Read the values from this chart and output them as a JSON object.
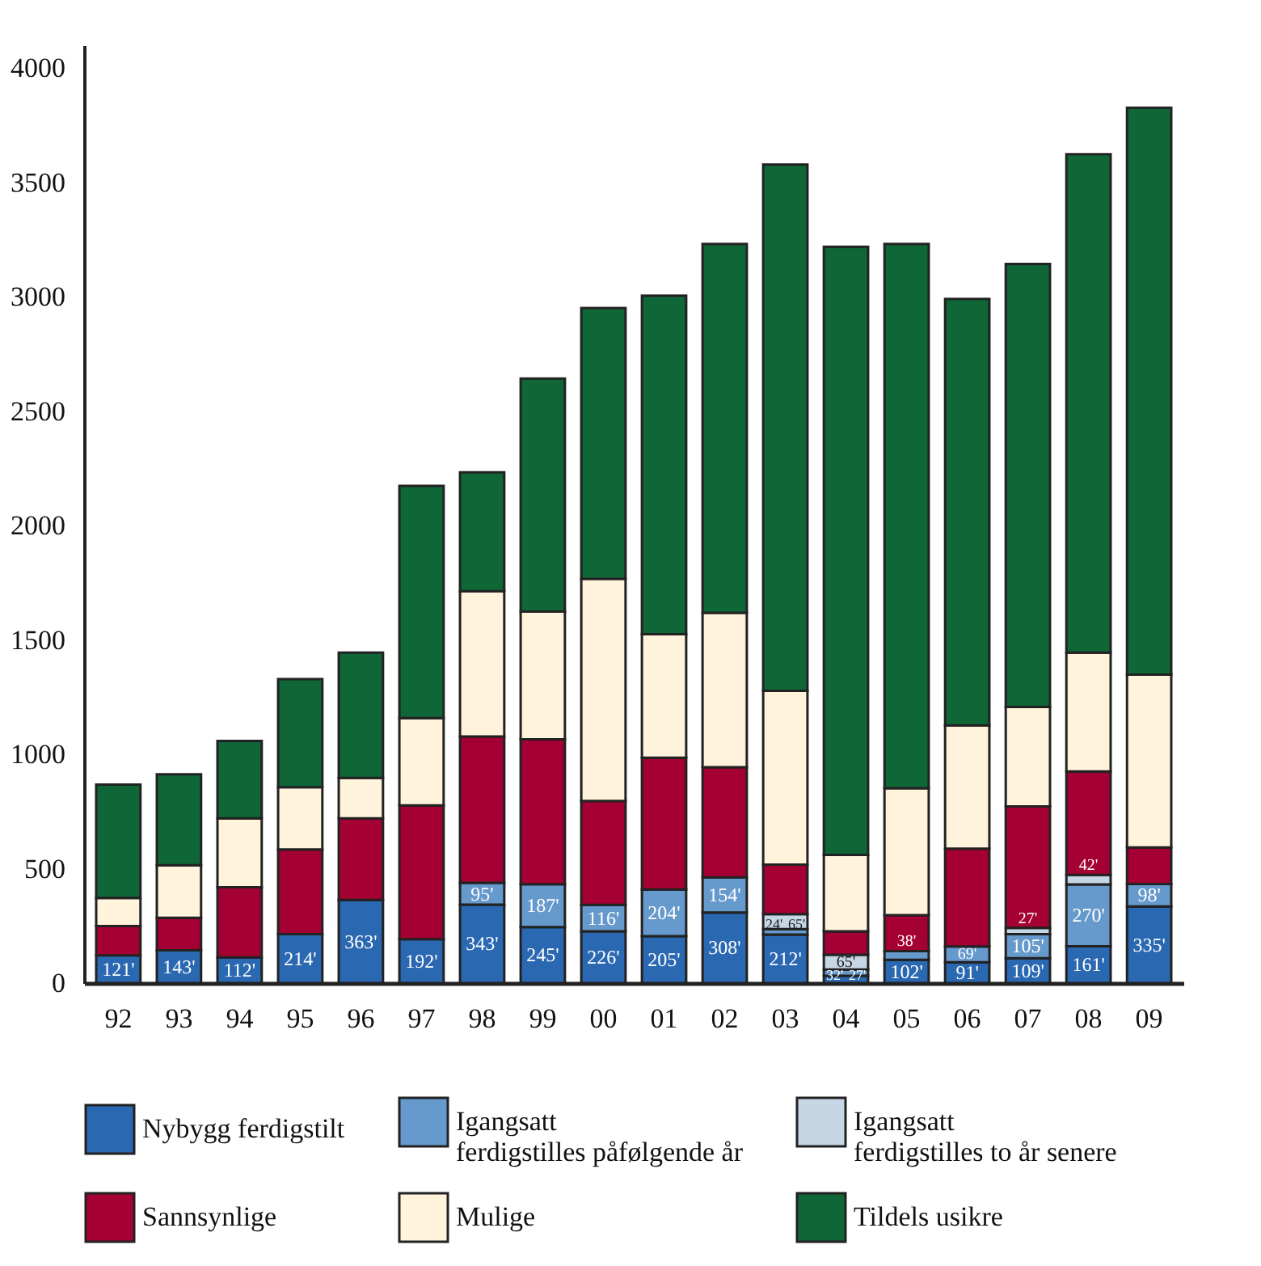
{
  "chart_data": {
    "type": "bar",
    "stacked": true,
    "categories": [
      "92",
      "93",
      "94",
      "95",
      "96",
      "97",
      "98",
      "99",
      "00",
      "01",
      "02",
      "03",
      "04",
      "05",
      "06",
      "07",
      "08",
      "09"
    ],
    "ylim": [
      0,
      4100
    ],
    "yticks": [
      0,
      500,
      1000,
      1500,
      2000,
      2500,
      3000,
      3500,
      4000
    ],
    "grid": false,
    "legend": "bottom",
    "series": [
      {
        "name": "Nybygg ferdigstilt",
        "color": "#2b68b2",
        "values": [
          121,
          143,
          112,
          214,
          363,
          192,
          343,
          245,
          226,
          205,
          308,
          212,
          32,
          102,
          91,
          109,
          161,
          335
        ],
        "value_labels": [
          "121'",
          "143'",
          "112'",
          "214'",
          "363'",
          "192'",
          "343'",
          "245'",
          "226'",
          "205'",
          "308'",
          "212'",
          "32'",
          "102'",
          "91'",
          "109'",
          "161'",
          "335'"
        ]
      },
      {
        "name": "Igangsatt ferdigstilles påfølgende år",
        "color": "#6699cc",
        "values": [
          null,
          null,
          null,
          null,
          null,
          null,
          95,
          187,
          116,
          204,
          154,
          24,
          27,
          38,
          69,
          105,
          270,
          98
        ],
        "value_labels": [
          null,
          null,
          null,
          null,
          null,
          null,
          "95'",
          "187'",
          "116'",
          "204'",
          "154'",
          "24'",
          "27'",
          "38'",
          "69'",
          "105'",
          "270'",
          "98'"
        ]
      },
      {
        "name": "Igangsatt ferdigstilles to år senere",
        "color": "#c6d6e4",
        "values": [
          null,
          null,
          null,
          null,
          null,
          null,
          null,
          null,
          null,
          null,
          null,
          65,
          65,
          null,
          null,
          27,
          42,
          null
        ],
        "value_labels": [
          null,
          null,
          null,
          null,
          null,
          null,
          null,
          null,
          null,
          null,
          null,
          "65'",
          "65'",
          null,
          null,
          "27'",
          "42'",
          null
        ]
      },
      {
        "name": "Sannsynlige",
        "color": "#a50034",
        "values": [
          128,
          142,
          307,
          370,
          357,
          585,
          640,
          634,
          454,
          576,
          482,
          217,
          102,
          157,
          428,
          531,
          452,
          160
        ]
      },
      {
        "name": "Mulige",
        "color": "#fff3dc",
        "values": [
          123,
          230,
          301,
          272,
          177,
          381,
          635,
          558,
          971,
          540,
          675,
          760,
          334,
          555,
          539,
          435,
          520,
          755
        ]
      },
      {
        "name": "Tildels usikre",
        "color": "#0f6637",
        "values": [
          496,
          398,
          339,
          473,
          548,
          1016,
          520,
          1019,
          1184,
          1480,
          1612,
          2301,
          2659,
          2379,
          1864,
          1937,
          2179,
          2479
        ]
      }
    ]
  }
}
